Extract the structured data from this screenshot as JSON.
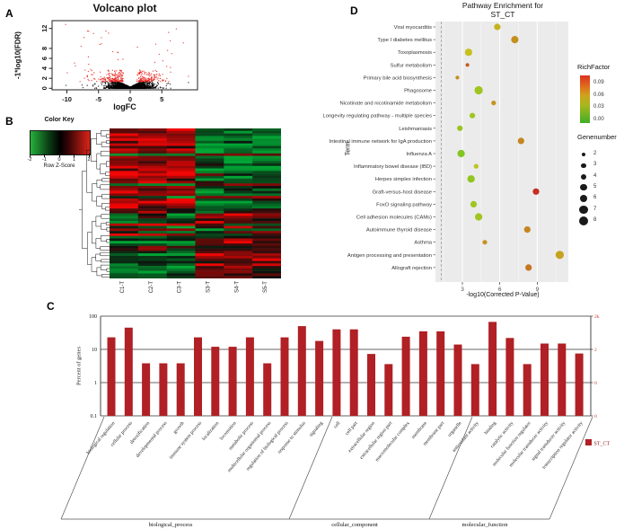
{
  "panel_labels": {
    "a": "A",
    "b": "B",
    "c": "C",
    "d": "D"
  },
  "chart_data": [
    {
      "type": "scatter",
      "panel": "A",
      "title": "Volcano plot",
      "xlabel": "logFC",
      "ylabel": "-1*log10(FDR)",
      "x_ticks": [
        -10,
        -5,
        0,
        5
      ],
      "y_ticks": [
        0,
        2,
        4,
        6,
        8,
        12
      ],
      "xlim": [
        -12.3,
        10.6
      ],
      "ylim": [
        0,
        13.5
      ],
      "sig_color": "#e8251f",
      "nonsig_color": "#000000",
      "description": "Black non-significant points form a dense wing shape near y=0 around logFC 0; red significant points (|logFC|>1, -log10(FDR)>1.3) scatter above, up to y~13.",
      "sig_landmarks": [
        [
          -10.2,
          12.8
        ],
        [
          7.3,
          11.9
        ],
        [
          8.4,
          9.1
        ],
        [
          -7.3,
          10.2
        ],
        [
          5.9,
          7.6
        ],
        [
          -4.8,
          8.8
        ],
        [
          -6.6,
          6.3
        ],
        [
          3.9,
          5.2
        ]
      ],
      "gen": {
        "seed": 42,
        "n_background": 2000,
        "n_sig_cloud": 240,
        "n_sig_high": 26
      }
    },
    {
      "type": "heatmap",
      "panel": "B",
      "color_key": {
        "title": "Color Key",
        "axis_label": "Row Z-Score",
        "ticks": [
          -2,
          -1,
          0,
          1,
          2
        ]
      },
      "columns": [
        "C1-T",
        "C2-T",
        "C3-T",
        "S3-T",
        "S4-T",
        "S5-T"
      ],
      "scale": {
        "min": -2,
        "max": 2,
        "low": "#1ea83a",
        "mid": "#000000",
        "high": "#dc2018"
      },
      "pattern": "Upper row block: high (red) in C samples, low (green) in S samples; lower block reversed; row dendrogram on the left.",
      "gen": {
        "rows": 60,
        "seed": 11
      }
    },
    {
      "type": "bar",
      "panel": "C",
      "ylabel": "Percent of genes",
      "yscale": "log",
      "left_ticks": [
        "100",
        "10",
        "1",
        "0.1"
      ],
      "right_ticks": [
        "2k",
        "2",
        "0",
        "0"
      ],
      "bar_color": "#b02025",
      "legend_label": "ST_CT",
      "groups": [
        {
          "name": "biological_process",
          "terms": [
            "biological regulation",
            "cellular process",
            "detoxification",
            "developmental process",
            "growth",
            "immune system process",
            "localization",
            "locomotion",
            "metabolic process",
            "multicellular organismal process",
            "regulation of biological process",
            "response to stimulus",
            "signaling"
          ],
          "values": [
            23,
            45,
            3.8,
            3.8,
            3.8,
            23,
            12,
            12,
            23,
            3.8,
            23,
            50,
            18
          ]
        },
        {
          "name": "cellular_component",
          "terms": [
            "cell",
            "cell part",
            "extracellular region",
            "extracellular region part",
            "macromolecular complex",
            "membrane",
            "membrane part",
            "organelle"
          ],
          "values": [
            40,
            40,
            7.3,
            3.6,
            24,
            35,
            35,
            14
          ]
        },
        {
          "name": "molecular_function",
          "terms": [
            "antioxidant activity",
            "binding",
            "catalytic activity",
            "molecular function regulator",
            "molecular transducer activity",
            "signal transducer activity",
            "transcription regulator activity"
          ],
          "values": [
            3.6,
            67,
            22,
            3.6,
            15,
            15,
            7.5
          ]
        }
      ]
    },
    {
      "type": "scatter",
      "panel": "D",
      "title_line1": "Pathway Enrichment for",
      "title_line2": "ST_CT",
      "xlabel": "-log10(Corrected P-Value)",
      "ylabel": "Term",
      "x_ticks": [
        3,
        6,
        9
      ],
      "threshold_x": 1.3,
      "rich_legend": {
        "title": "RichFactor",
        "ticks": [
          "0.09",
          "0.06",
          "0.03",
          "0.00"
        ]
      },
      "size_legend": {
        "title": "Genenumber",
        "sizes": [
          2,
          3,
          4,
          5,
          6,
          7,
          8
        ]
      },
      "rows": [
        {
          "term": "Viral myocarditis",
          "x": 5.8,
          "rich": 0.05,
          "genes": 5
        },
        {
          "term": "Type I diabetes mellitus",
          "x": 7.2,
          "rich": 0.062,
          "genes": 6
        },
        {
          "term": "Toxoplasmosis",
          "x": 3.5,
          "rich": 0.045,
          "genes": 6
        },
        {
          "term": "Sulfur metabolism",
          "x": 3.4,
          "rich": 0.08,
          "genes": 2
        },
        {
          "term": "Primary bile acid biosynthesis",
          "x": 2.6,
          "rich": 0.062,
          "genes": 2
        },
        {
          "term": "Phagosome",
          "x": 4.3,
          "rich": 0.03,
          "genes": 7
        },
        {
          "term": "Nicotinate and nicotinamide metabolism",
          "x": 5.5,
          "rich": 0.06,
          "genes": 3
        },
        {
          "term": "Longevity regulating pathway - multiple species",
          "x": 3.8,
          "rich": 0.03,
          "genes": 4
        },
        {
          "term": "Leishmaniasis",
          "x": 2.8,
          "rich": 0.028,
          "genes": 4
        },
        {
          "term": "Intestinal immune network for IgA production",
          "x": 7.7,
          "rich": 0.065,
          "genes": 5
        },
        {
          "term": "Influenza A",
          "x": 2.9,
          "rich": 0.02,
          "genes": 6
        },
        {
          "term": "Inflammatory bowel disease (IBD)",
          "x": 4.1,
          "rich": 0.04,
          "genes": 3
        },
        {
          "term": "Herpes simplex infection",
          "x": 3.7,
          "rich": 0.025,
          "genes": 6
        },
        {
          "term": "Graft-versus-host disease",
          "x": 8.9,
          "rich": 0.095,
          "genes": 5
        },
        {
          "term": "FoxO signaling pathway",
          "x": 3.9,
          "rich": 0.03,
          "genes": 5
        },
        {
          "term": "Cell adhesion molecules (CAMs)",
          "x": 4.3,
          "rich": 0.03,
          "genes": 6
        },
        {
          "term": "Autoimmune thyroid disease",
          "x": 8.2,
          "rich": 0.065,
          "genes": 5
        },
        {
          "term": "Asthma",
          "x": 4.8,
          "rich": 0.06,
          "genes": 3
        },
        {
          "term": "Antigen processing and presentation",
          "x": 10.8,
          "rich": 0.055,
          "genes": 7
        },
        {
          "term": "Allograft rejection",
          "x": 8.3,
          "rich": 0.07,
          "genes": 5
        }
      ]
    }
  ]
}
